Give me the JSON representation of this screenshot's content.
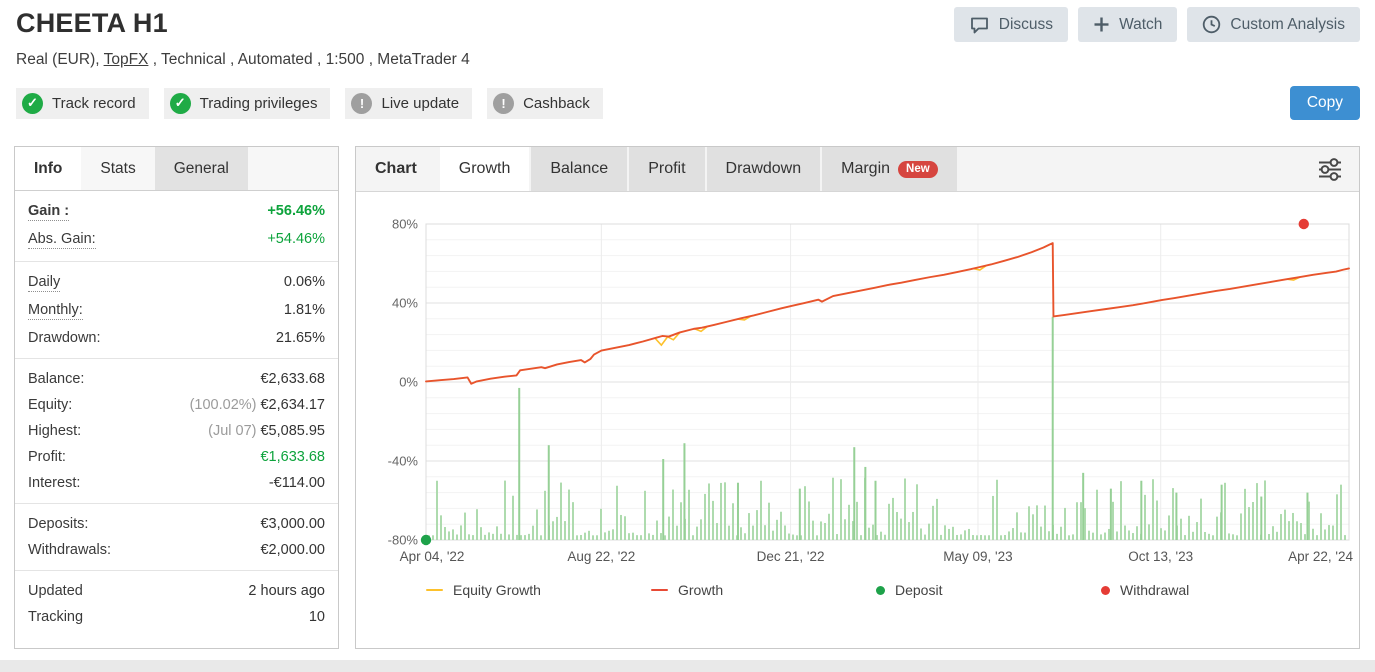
{
  "header": {
    "title": "CHEETA H1",
    "subtitle_prefix": "Real (EUR), ",
    "broker_link": "TopFX",
    "subtitle_suffix": " , Technical , Automated , 1:500 , MetaTrader 4",
    "actions": [
      {
        "label": "Discuss",
        "icon": "discuss"
      },
      {
        "label": "Watch",
        "icon": "watch"
      },
      {
        "label": "Custom Analysis",
        "icon": "clock"
      }
    ]
  },
  "badges": [
    {
      "label": "Track record",
      "status": "ok"
    },
    {
      "label": "Trading privileges",
      "status": "ok"
    },
    {
      "label": "Live update",
      "status": "warn"
    },
    {
      "label": "Cashback",
      "status": "warn"
    }
  ],
  "copy_button": "Copy",
  "info_panel": {
    "tabs": [
      {
        "label": "Info",
        "state": "active"
      },
      {
        "label": "Stats",
        "state": "normal"
      },
      {
        "label": "General",
        "state": "gray"
      }
    ],
    "sections": [
      [
        {
          "label": "Gain :",
          "value": "+56.46%",
          "green": true,
          "bold": true,
          "dotted": true
        },
        {
          "label": "Abs. Gain:",
          "value": "+54.46%",
          "green": true,
          "dotted": true
        }
      ],
      [
        {
          "label": "Daily",
          "value": "0.06%",
          "dotted": true
        },
        {
          "label": "Monthly:",
          "value": "1.81%",
          "dotted": true
        },
        {
          "label": "Drawdown:",
          "value": "21.65%"
        }
      ],
      [
        {
          "label": "Balance:",
          "value": "€2,633.68"
        },
        {
          "label": "Equity:",
          "pre": "(100.02%)",
          "value": "€2,634.17"
        },
        {
          "label": "Highest:",
          "pre": "(Jul 07)",
          "value": "€5,085.95"
        },
        {
          "label": "Profit:",
          "value": "€1,633.68",
          "green": true
        },
        {
          "label": "Interest:",
          "value": "-€114.00"
        }
      ],
      [
        {
          "label": "Deposits:",
          "value": "€3,000.00"
        },
        {
          "label": "Withdrawals:",
          "value": "€2,000.00"
        }
      ],
      [
        {
          "label": "Updated",
          "value": "2 hours ago"
        },
        {
          "label": "Tracking",
          "value": "10"
        }
      ]
    ]
  },
  "chart_panel": {
    "tabs": [
      {
        "label": "Chart",
        "state": "label"
      },
      {
        "label": "Growth",
        "state": "active"
      },
      {
        "label": "Balance",
        "state": "normal"
      },
      {
        "label": "Profit",
        "state": "normal"
      },
      {
        "label": "Drawdown",
        "state": "normal"
      },
      {
        "label": "Margin",
        "state": "normal",
        "badge": "New"
      }
    ]
  },
  "chart_data": {
    "type": "line",
    "title": "Growth",
    "ylim": [
      -80,
      80
    ],
    "yticks": [
      80,
      40,
      0,
      -40,
      -80
    ],
    "ytick_suffix": "%",
    "grid": true,
    "xticks": [
      {
        "label": "Apr 04, '22",
        "pos": 0
      },
      {
        "label": "Aug 22, '22",
        "pos": 0.19
      },
      {
        "label": "Dec 21, '22",
        "pos": 0.395
      },
      {
        "label": "May 09, '23",
        "pos": 0.598
      },
      {
        "label": "Oct 13, '23",
        "pos": 0.796
      },
      {
        "label": "Apr 22, '24",
        "pos": 1
      }
    ],
    "series": [
      {
        "name": "Growth",
        "color": "#e8542c",
        "points": [
          [
            0,
            0.3
          ],
          [
            0.015,
            0.9
          ],
          [
            0.03,
            1.5
          ],
          [
            0.045,
            2.3
          ],
          [
            0.049,
            -0.9
          ],
          [
            0.055,
            0.3
          ],
          [
            0.07,
            1.7
          ],
          [
            0.085,
            2.7
          ],
          [
            0.098,
            3.3
          ],
          [
            0.102,
            5.9
          ],
          [
            0.113,
            6.7
          ],
          [
            0.125,
            7.5
          ],
          [
            0.129,
            7.0
          ],
          [
            0.142,
            8.9
          ],
          [
            0.155,
            10.1
          ],
          [
            0.168,
            11.1
          ],
          [
            0.172,
            9.9
          ],
          [
            0.178,
            11.6
          ],
          [
            0.182,
            13.9
          ],
          [
            0.19,
            15.9
          ],
          [
            0.205,
            17.3
          ],
          [
            0.22,
            18.7
          ],
          [
            0.235,
            20.5
          ],
          [
            0.25,
            22.5
          ],
          [
            0.256,
            23.3
          ],
          [
            0.263,
            23.0
          ],
          [
            0.275,
            25.1
          ],
          [
            0.29,
            26.9
          ],
          [
            0.299,
            27.5
          ],
          [
            0.312,
            28.9
          ],
          [
            0.326,
            30.5
          ],
          [
            0.34,
            32.1
          ],
          [
            0.355,
            33.7
          ],
          [
            0.37,
            35.5
          ],
          [
            0.385,
            37.3
          ],
          [
            0.396,
            38.5
          ],
          [
            0.411,
            40.1
          ],
          [
            0.425,
            41.7
          ],
          [
            0.429,
            40.7
          ],
          [
            0.441,
            43.5
          ],
          [
            0.456,
            44.9
          ],
          [
            0.471,
            46.3
          ],
          [
            0.486,
            47.7
          ],
          [
            0.5,
            49.1
          ],
          [
            0.515,
            50.3
          ],
          [
            0.53,
            51.7
          ],
          [
            0.546,
            53.1
          ],
          [
            0.561,
            54.3
          ],
          [
            0.576,
            55.7
          ],
          [
            0.59,
            57.1
          ],
          [
            0.599,
            58.1
          ],
          [
            0.612,
            59.5
          ],
          [
            0.626,
            61.3
          ],
          [
            0.641,
            63.3
          ],
          [
            0.656,
            65.7
          ],
          [
            0.669,
            68.1
          ],
          [
            0.676,
            69.7
          ],
          [
            0.679,
            70.3
          ],
          [
            0.6798,
            33.2
          ],
          [
            0.691,
            33.9
          ],
          [
            0.706,
            34.9
          ],
          [
            0.721,
            35.9
          ],
          [
            0.736,
            36.9
          ],
          [
            0.751,
            37.9
          ],
          [
            0.766,
            38.9
          ],
          [
            0.781,
            40.1
          ],
          [
            0.797,
            41.5
          ],
          [
            0.811,
            42.5
          ],
          [
            0.826,
            43.7
          ],
          [
            0.841,
            44.9
          ],
          [
            0.856,
            46.1
          ],
          [
            0.871,
            47.1
          ],
          [
            0.886,
            48.3
          ],
          [
            0.901,
            49.5
          ],
          [
            0.916,
            50.7
          ],
          [
            0.931,
            51.9
          ],
          [
            0.946,
            53.1
          ],
          [
            0.961,
            54.3
          ],
          [
            0.976,
            55.3
          ],
          [
            0.986,
            55.9
          ],
          [
            0.994,
            56.9
          ],
          [
            1,
            57.5
          ]
        ]
      },
      {
        "name": "Equity Growth",
        "color": "#fdc12b",
        "dips": [
          [
            0.255,
            4.5
          ],
          [
            0.268,
            2.5
          ],
          [
            0.298,
            1.8
          ],
          [
            0.345,
            1.2
          ],
          [
            0.6,
            1.5
          ],
          [
            0.94,
            1.0
          ]
        ]
      }
    ],
    "markers": [
      {
        "type": "deposit",
        "x": 0,
        "y": -80,
        "color": "#1ea24a"
      },
      {
        "type": "withdrawal",
        "x": 0.951,
        "y": 80,
        "color": "#e53c35"
      }
    ],
    "activity": {
      "color": "#aedbae",
      "spikes": [
        [
          0.101,
          77
        ],
        [
          0.133,
          48
        ],
        [
          0.257,
          41
        ],
        [
          0.28,
          49
        ],
        [
          0.338,
          29
        ],
        [
          0.405,
          26
        ],
        [
          0.464,
          47
        ],
        [
          0.476,
          37
        ],
        [
          0.487,
          30
        ],
        [
          0.679,
          113
        ],
        [
          0.712,
          34
        ],
        [
          0.742,
          26
        ],
        [
          0.775,
          30
        ],
        [
          0.813,
          24
        ],
        [
          0.862,
          28
        ],
        [
          0.905,
          22
        ],
        [
          0.955,
          24
        ]
      ]
    },
    "legend": [
      {
        "label": "Equity Growth",
        "marker": "dash",
        "color": "#fdc12b"
      },
      {
        "label": "Growth",
        "marker": "dash",
        "color": "#e84a35"
      },
      {
        "label": "Deposit",
        "marker": "dot",
        "color": "#1ea24a"
      },
      {
        "label": "Withdrawal",
        "marker": "dot",
        "color": "#e53c35"
      }
    ]
  }
}
